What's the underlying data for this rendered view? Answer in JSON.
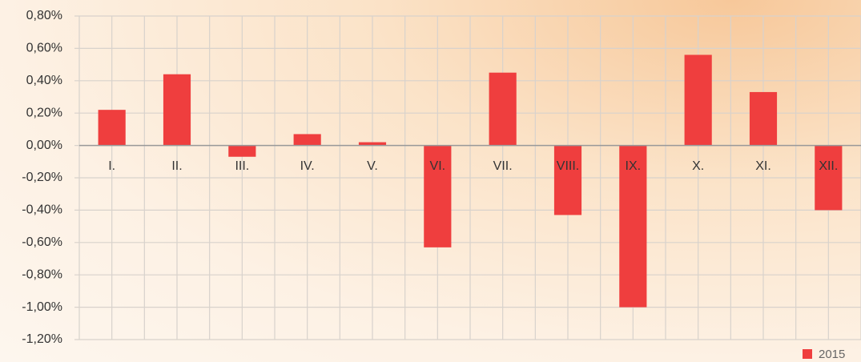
{
  "chart_data": {
    "type": "bar",
    "categories": [
      "I.",
      "II.",
      "III.",
      "IV.",
      "V.",
      "VI.",
      "VII.",
      "VIII.",
      "IX.",
      "X.",
      "XI.",
      "XII."
    ],
    "series": [
      {
        "name": "2015",
        "color": "#ef3e3e",
        "values": [
          0.22,
          0.44,
          -0.07,
          0.07,
          0.02,
          -0.63,
          0.45,
          -0.43,
          -1.0,
          0.56,
          0.33,
          -0.4
        ]
      }
    ],
    "ylim": [
      -1.2,
      0.8
    ],
    "yticks": [
      {
        "value": -1.2,
        "label": "-1,20%"
      },
      {
        "value": -1.0,
        "label": "-1,00%"
      },
      {
        "value": -0.8,
        "label": "-0,80%"
      },
      {
        "value": -0.6,
        "label": "-0,60%"
      },
      {
        "value": -0.4,
        "label": "-0,40%"
      },
      {
        "value": -0.2,
        "label": "-0,20%"
      },
      {
        "value": 0,
        "label": "0,00%"
      },
      {
        "value": 0.2,
        "label": "0,20%"
      },
      {
        "value": 0.4,
        "label": "0,40%"
      },
      {
        "value": 0.6,
        "label": "0,60%"
      },
      {
        "value": 0.8,
        "label": "0,80%"
      }
    ],
    "grid": true,
    "legend": "bottom-right"
  }
}
